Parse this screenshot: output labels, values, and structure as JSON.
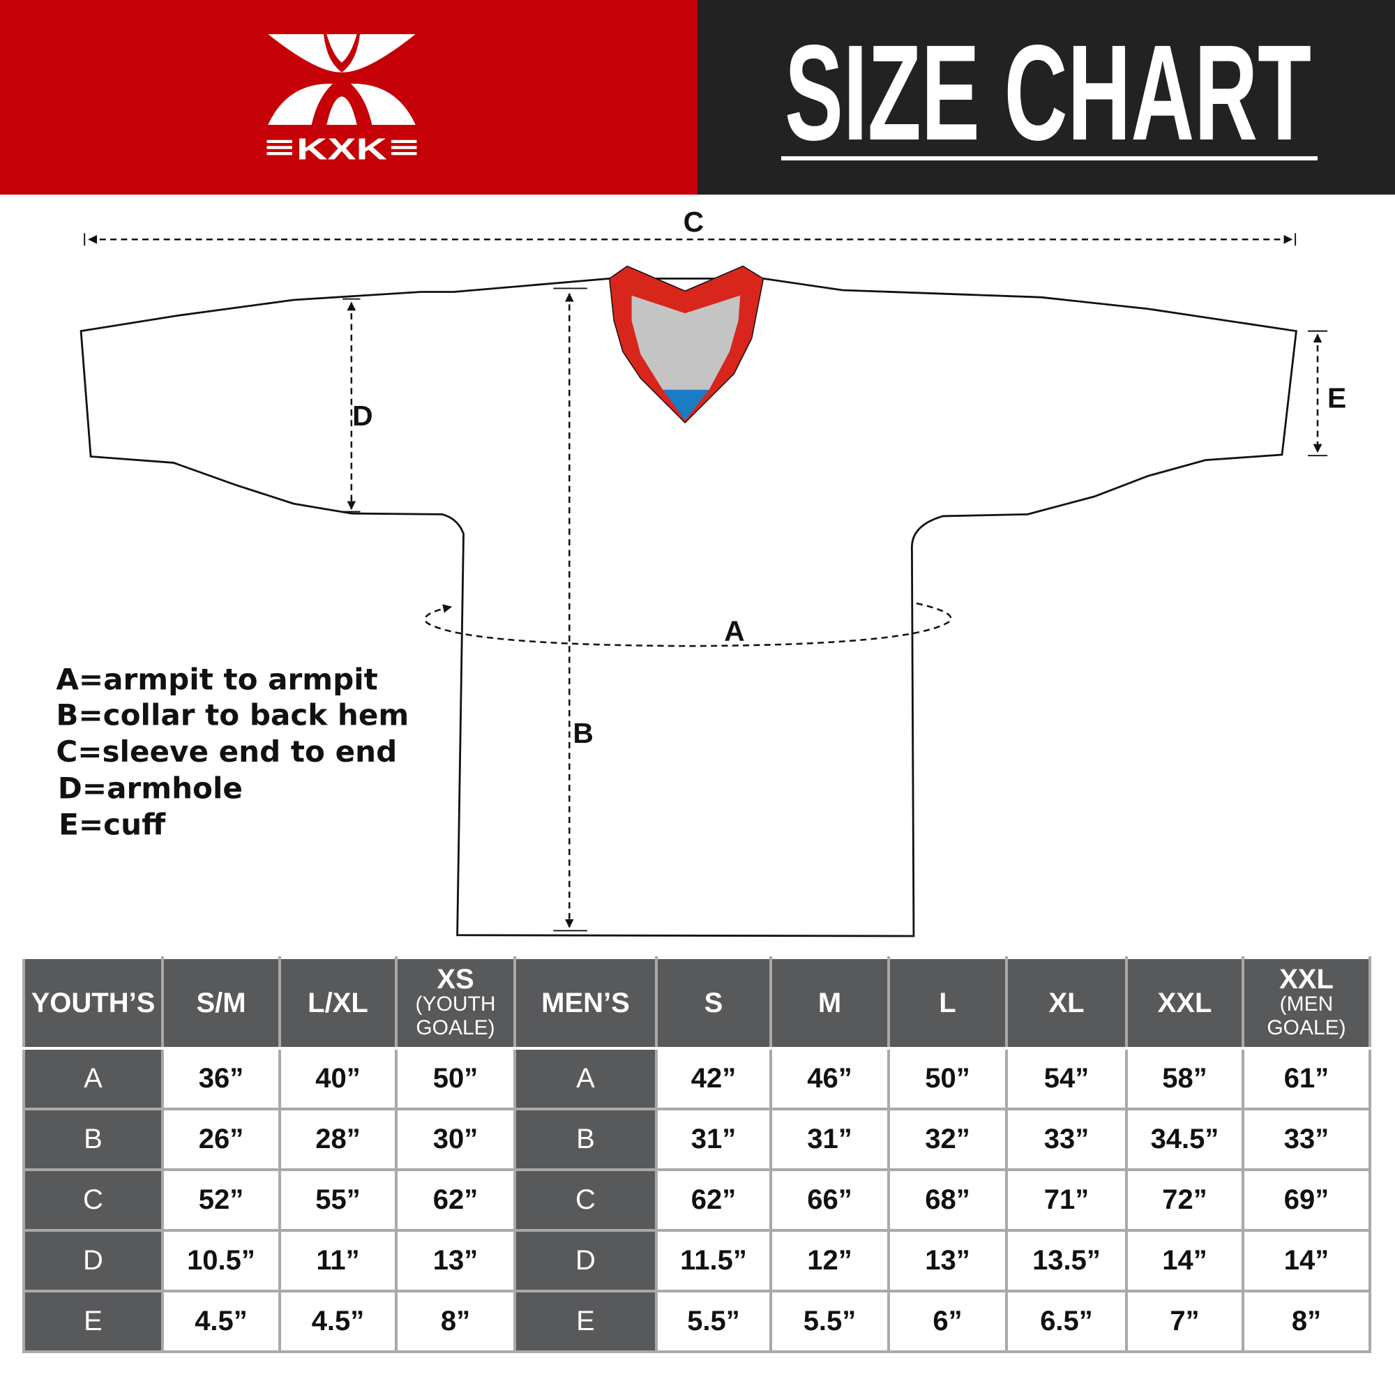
{
  "header": {
    "brand": "KXK",
    "title": "SIZE CHART",
    "colors": {
      "brand_red": "#c50006",
      "dark": "#222222",
      "table_header": "#58595b",
      "collar_red": "#d9261c",
      "collar_blue": "#1a7cc4"
    }
  },
  "diagram": {
    "labels": {
      "a": "A",
      "b": "B",
      "c": "C",
      "d": "D",
      "e": "E"
    },
    "legend": [
      "A=armpit to armpit",
      "B=collar to back hem",
      "C=sleeve end to end",
      "D=armhole",
      "E=cuff"
    ]
  },
  "table": {
    "youth_header": "YOUTH’S",
    "youth_sizes": [
      {
        "main": "S/M",
        "sub": ""
      },
      {
        "main": "L/XL",
        "sub": ""
      },
      {
        "main": "XS",
        "sub": "(YOUTH GOALE)"
      }
    ],
    "men_header": "MEN’S",
    "men_sizes": [
      {
        "main": "S",
        "sub": ""
      },
      {
        "main": "M",
        "sub": ""
      },
      {
        "main": "L",
        "sub": ""
      },
      {
        "main": "XL",
        "sub": ""
      },
      {
        "main": "XXL",
        "sub": ""
      },
      {
        "main": "XXL",
        "sub": "(MEN GOALE)"
      }
    ],
    "rows": [
      {
        "label": "A",
        "youth": [
          "36”",
          "40”",
          "50”"
        ],
        "men": [
          "42”",
          "46”",
          "50”",
          "54”",
          "58”",
          "61”"
        ]
      },
      {
        "label": "B",
        "youth": [
          "26”",
          "28”",
          "30”"
        ],
        "men": [
          "31”",
          "31”",
          "32”",
          "33”",
          "34.5”",
          "33”"
        ]
      },
      {
        "label": "C",
        "youth": [
          "52”",
          "55”",
          "62”"
        ],
        "men": [
          "62”",
          "66”",
          "68”",
          "71”",
          "72”",
          "69”"
        ]
      },
      {
        "label": "D",
        "youth": [
          "10.5”",
          "11”",
          "13”"
        ],
        "men": [
          "11.5”",
          "12”",
          "13”",
          "13.5”",
          "14”",
          "14”"
        ]
      },
      {
        "label": "E",
        "youth": [
          "4.5”",
          "4.5”",
          "8”"
        ],
        "men": [
          "5.5”",
          "5.5”",
          "6”",
          "6.5”",
          "7”",
          "8”"
        ]
      }
    ]
  }
}
